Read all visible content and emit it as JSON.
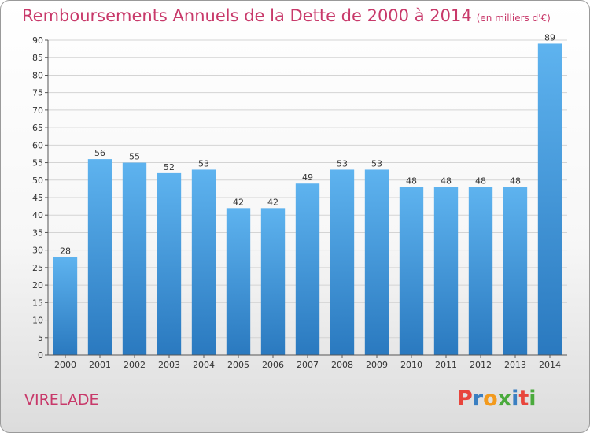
{
  "title": "Remboursements Annuels de la Dette de 2000 à 2014",
  "title_unit": "(en milliers d'€)",
  "commune": "VIRELADE",
  "logo": {
    "letters": [
      "P",
      "r",
      "o",
      "x",
      "i",
      "t",
      "i"
    ],
    "colors": [
      "#e8453c",
      "#3a7fc1",
      "#f29a1d",
      "#4aaa3c",
      "#3a7fc1",
      "#e8453c",
      "#4aaa3c"
    ]
  },
  "colors": {
    "bar_light": "#5eb3ef",
    "bar_dark": "#2a79bf",
    "accent": "#c8396a"
  },
  "chart_data": {
    "type": "bar",
    "categories": [
      "2000",
      "2001",
      "2002",
      "2003",
      "2004",
      "2005",
      "2006",
      "2007",
      "2008",
      "2009",
      "2010",
      "2011",
      "2012",
      "2013",
      "2014"
    ],
    "values": [
      28,
      56,
      55,
      52,
      53,
      42,
      42,
      49,
      53,
      53,
      48,
      48,
      48,
      48,
      89
    ],
    "ylim": [
      0,
      90
    ],
    "ytick_step": 5,
    "grid": true
  }
}
